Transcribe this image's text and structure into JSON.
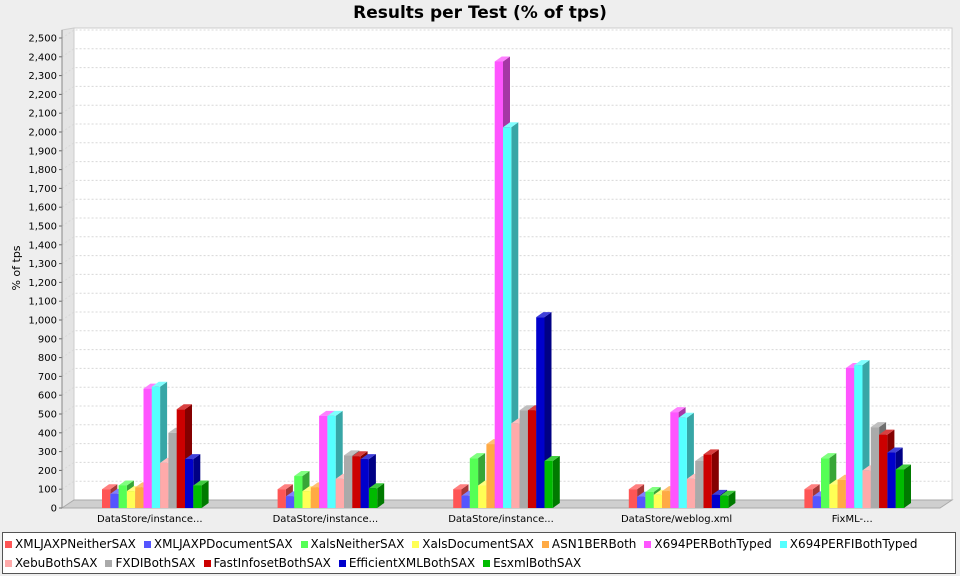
{
  "chart_data": {
    "type": "bar",
    "title": "Results per Test (% of tps)",
    "ylabel": "% of tps",
    "xlabel": "",
    "ylim": [
      0,
      2500
    ],
    "ytick_step": 100,
    "grid": true,
    "legend_position": "bottom",
    "categories": [
      "DataStore/instance...",
      "DataStore/instance...",
      "DataStore/instance...",
      "DataStore/weblog.xml",
      "FixML-..."
    ],
    "series": [
      {
        "name": "XMLJAXPNeitherSAX",
        "color": "#ff5555",
        "values": [
          100,
          100,
          100,
          100,
          100
        ]
      },
      {
        "name": "XMLJAXPDocumentSAX",
        "color": "#5555ff",
        "values": [
          75,
          62,
          65,
          60,
          62
        ]
      },
      {
        "name": "XalsNeitherSAX",
        "color": "#55ff55",
        "values": [
          120,
          170,
          265,
          85,
          265
        ]
      },
      {
        "name": "XalsDocumentSAX",
        "color": "#ffff55",
        "values": [
          90,
          90,
          120,
          70,
          125
        ]
      },
      {
        "name": "ASN1BERBoth",
        "color": "#ffaa44",
        "values": [
          110,
          110,
          340,
          90,
          150
        ]
      },
      {
        "name": "X694PERBothTyped",
        "color": "#ff55ff",
        "values": [
          635,
          490,
          2375,
          510,
          745
        ]
      },
      {
        "name": "X694PERFIBothTyped",
        "color": "#55ffff",
        "values": [
          645,
          490,
          2025,
          480,
          760
        ]
      },
      {
        "name": "XebuBothSAX",
        "color": "#ffaaaa",
        "values": [
          240,
          155,
          450,
          155,
          200
        ]
      },
      {
        "name": "FXDIBothSAX",
        "color": "#aaaaaa",
        "values": [
          400,
          280,
          520,
          250,
          430
        ]
      },
      {
        "name": "FastInfosetBothSAX",
        "color": "#cc0000",
        "values": [
          525,
          275,
          520,
          285,
          390
        ]
      },
      {
        "name": "EfficientXMLBothSAX",
        "color": "#0000cc",
        "values": [
          260,
          260,
          1015,
          70,
          295
        ]
      },
      {
        "name": "EsxmlBothSAX",
        "color": "#00bb00",
        "values": [
          120,
          105,
          250,
          65,
          205
        ]
      }
    ]
  }
}
